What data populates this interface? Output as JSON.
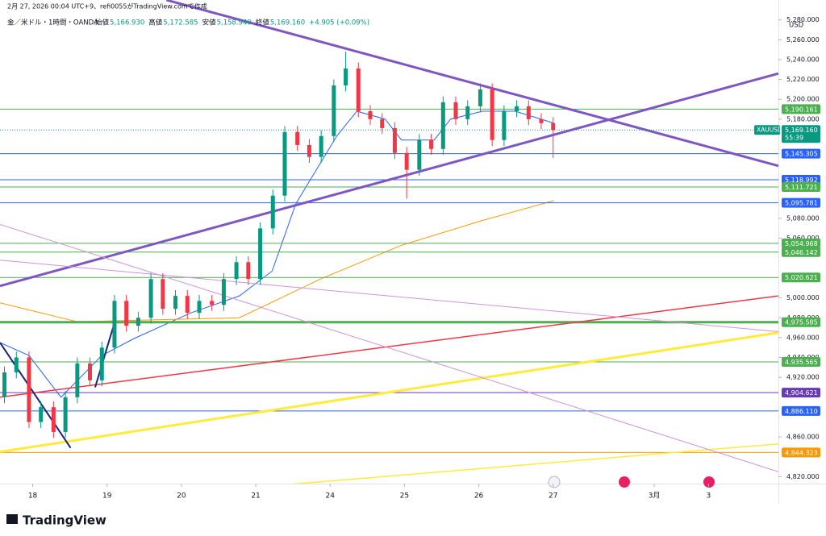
{
  "header": {
    "created": "2月 27, 2026 00:04 UTC+9、refi0055がTradingView.comで作成",
    "symbol": "金／米ドル・1時間・OANDA",
    "ohlc": [
      {
        "label": "始値",
        "value": "5,166.930"
      },
      {
        "label": "高値",
        "value": "5,172.585"
      },
      {
        "label": "安値",
        "value": "5,158.940"
      },
      {
        "label": "終値",
        "value": "5,169.160"
      }
    ],
    "change": "+4.905 (+0.09%)"
  },
  "chart_data": {
    "type": "candlestick",
    "currency": "USD",
    "xlim": [
      -0.44,
      10.03
    ],
    "ylim": [
      4813,
      5300
    ],
    "xticks": [
      {
        "value": 0,
        "label": "18"
      },
      {
        "value": 1,
        "label": "19"
      },
      {
        "value": 2,
        "label": "20"
      },
      {
        "value": 3,
        "label": "21"
      },
      {
        "value": 4,
        "label": "24"
      },
      {
        "value": 5,
        "label": "25"
      },
      {
        "value": 6,
        "label": "26"
      },
      {
        "value": 7,
        "label": "27"
      },
      {
        "value": 8.36,
        "label": "3月"
      },
      {
        "value": 9.09,
        "label": "3"
      }
    ],
    "yticks": [
      {
        "value": 5280,
        "label": "5,280.000"
      },
      {
        "value": 5260,
        "label": "5,260.000"
      },
      {
        "value": 5240,
        "label": "5,240.000"
      },
      {
        "value": 5220,
        "label": "5,220.000"
      },
      {
        "value": 5200,
        "label": "5,200.000"
      },
      {
        "value": 5180,
        "label": "5,180.000"
      },
      {
        "value": 5080,
        "label": "5,080.000"
      },
      {
        "value": 5060,
        "label": "5,060.000"
      },
      {
        "value": 5000,
        "label": "5,000.000"
      },
      {
        "value": 4980,
        "label": "4,980.000"
      },
      {
        "value": 4960,
        "label": "4,960.000"
      },
      {
        "value": 4940,
        "label": "4,940.000"
      },
      {
        "value": 4920,
        "label": "4,920.000"
      },
      {
        "value": 4860,
        "label": "4,860.000"
      },
      {
        "value": 4820,
        "label": "4,820.000"
      }
    ],
    "up_color": "#089981",
    "down_color": "#f23645",
    "x": [
      -0.38,
      -0.22,
      -0.05,
      0.11,
      0.28,
      0.44,
      0.6,
      0.77,
      0.93,
      1.1,
      1.26,
      1.42,
      1.59,
      1.75,
      1.92,
      2.08,
      2.24,
      2.41,
      2.57,
      2.74,
      2.9,
      3.06,
      3.23,
      3.39,
      3.56,
      3.72,
      3.88,
      4.05,
      4.21,
      4.38,
      4.54,
      4.7,
      4.87,
      5.03,
      5.2,
      5.36,
      5.52,
      5.69,
      5.85,
      6.02,
      6.18,
      6.34,
      6.51,
      6.67,
      6.84,
      7.0
    ],
    "open": [
      4900,
      4925,
      4940,
      4875,
      4890,
      4865,
      4900,
      4934,
      4917,
      4950,
      4997,
      4972,
      4980,
      5019,
      4989,
      5002,
      4985,
      4997,
      4993,
      5019,
      5036,
      5019,
      5070,
      5103,
      5167,
      5154,
      5142,
      5163,
      5214,
      5231,
      5188,
      5180,
      5171,
      5146,
      5129,
      5159,
      5150,
      5197,
      5180,
      5193,
      5210,
      5159,
      5188,
      5193,
      5180,
      5176
    ],
    "high": [
      4931,
      4946,
      4946,
      4896,
      4896,
      4906,
      4940,
      4940,
      4956,
      5003,
      5003,
      4986,
      5025,
      5025,
      5008,
      5008,
      5003,
      5003,
      5025,
      5042,
      5042,
      5076,
      5109,
      5173,
      5173,
      5160,
      5169,
      5220,
      5248,
      5237,
      5194,
      5186,
      5177,
      5152,
      5165,
      5165,
      5203,
      5203,
      5199,
      5216,
      5216,
      5194,
      5199,
      5199,
      5186,
      5182
    ],
    "low": [
      4894,
      4919,
      4869,
      4869,
      4859,
      4859,
      4894,
      4911,
      4911,
      4944,
      4966,
      4966,
      4974,
      4983,
      4983,
      4979,
      4979,
      4987,
      4987,
      5013,
      5013,
      5013,
      5064,
      5097,
      5148,
      5136,
      5136,
      5157,
      5208,
      5182,
      5174,
      5165,
      5140,
      5100,
      5123,
      5144,
      5144,
      5174,
      5174,
      5187,
      5153,
      5153,
      5182,
      5174,
      5170,
      5141
    ],
    "close": [
      4925,
      4940,
      4875,
      4890,
      4865,
      4900,
      4934,
      4917,
      4950,
      4997,
      4972,
      4980,
      5019,
      4989,
      5002,
      4985,
      4997,
      4993,
      5019,
      5036,
      5019,
      5070,
      5103,
      5167,
      5154,
      5142,
      5163,
      5214,
      5231,
      5188,
      5180,
      5171,
      5146,
      5129,
      5159,
      5150,
      5197,
      5180,
      5193,
      5210,
      5159,
      5188,
      5193,
      5180,
      5176,
      5169
    ],
    "current": {
      "name": "XAUUSD",
      "value": 5169.16,
      "label": "5,169.160",
      "countdown": "55:39",
      "color": "#089981"
    },
    "levels": [
      {
        "value": 5190.161,
        "label": "5,190.161",
        "color": "#4caf50"
      },
      {
        "value": 5145.305,
        "label": "5,145.305",
        "color": "#2962ff"
      },
      {
        "value": 5118.992,
        "label": "5,118.992",
        "color": "#2962ff"
      },
      {
        "value": 5111.721,
        "label": "5,111.721",
        "color": "#4caf50"
      },
      {
        "value": 5095.781,
        "label": "5,095.781",
        "color": "#2962ff"
      },
      {
        "value": 5054.968,
        "label": "5,054.968",
        "color": "#4caf50"
      },
      {
        "value": 5046.142,
        "label": "5,046.142",
        "color": "#4caf50"
      },
      {
        "value": 5020.621,
        "label": "5,020.621",
        "color": "#4caf50"
      },
      {
        "value": 4975.585,
        "label": "4,975.585",
        "color": "#4caf50",
        "width": 3
      },
      {
        "value": 4935.565,
        "label": "4,935.565",
        "color": "#4caf50"
      },
      {
        "value": 4904.621,
        "label": "4,904.621",
        "color": "#673ab7"
      },
      {
        "value": 4886.11,
        "label": "4,886.110",
        "color": "#2962ff"
      },
      {
        "value": 4844.323,
        "label": "4,844.323",
        "color": "#ff9800"
      }
    ],
    "moving_averages": [
      {
        "color": "#2962ff",
        "x": [
          -0.44,
          -0.05,
          0.38,
          0.93,
          1.36,
          2.13,
          2.78,
          3.22,
          3.54,
          4.09,
          4.36,
          4.74,
          4.96,
          5.4,
          5.62,
          6.05,
          6.49,
          7.01
        ],
        "values": [
          4955,
          4942,
          4900,
          4942,
          4959,
          4985,
          5002,
          5027,
          5095,
          5163,
          5188,
          5180,
          5159,
          5159,
          5180,
          5188,
          5188,
          5176
        ]
      },
      {
        "color": "#ff9800",
        "x": [
          -0.44,
          0.6,
          2.78,
          3.87,
          4.96,
          6.05,
          7.01
        ],
        "values": [
          4995,
          4976,
          4980,
          5019,
          5053,
          5078,
          5098
        ]
      }
    ],
    "trend_lines": [
      {
        "color": "#7e57c2",
        "width": 3,
        "x": [
          1.8,
          10.03
        ],
        "y": [
          5300,
          5133
        ]
      },
      {
        "color": "#7e57c2",
        "width": 3,
        "x": [
          -0.44,
          10.03
        ],
        "y": [
          5012,
          5226
        ]
      },
      {
        "color": "#f23645",
        "width": 1.5,
        "x": [
          -0.44,
          10.03
        ],
        "y": [
          4900,
          5002
        ]
      },
      {
        "color": "#ffeb3b",
        "width": 3,
        "x": [
          -0.44,
          10.03
        ],
        "y": [
          4845,
          4965
        ]
      },
      {
        "color": "#ffeb3b",
        "width": 1.5,
        "x": [
          1.8,
          10.03
        ],
        "y": [
          4802,
          4853
        ]
      },
      {
        "color": "#ce93d8",
        "width": 1,
        "x": [
          -0.44,
          10.03
        ],
        "y": [
          5074,
          4825
        ]
      },
      {
        "color": "#ce93d8",
        "width": 1,
        "x": [
          -0.44,
          10.03
        ],
        "y": [
          5038,
          4966
        ]
      },
      {
        "color": "#1a237e",
        "width": 2,
        "x": [
          -0.44,
          0.51
        ],
        "y": [
          4955,
          4849
        ]
      },
      {
        "color": "#1a237e",
        "width": 2,
        "x": [
          0.84,
          1.12
        ],
        "y": [
          4910,
          4980
        ]
      }
    ]
  },
  "footer": {
    "logo": "TradingView"
  }
}
